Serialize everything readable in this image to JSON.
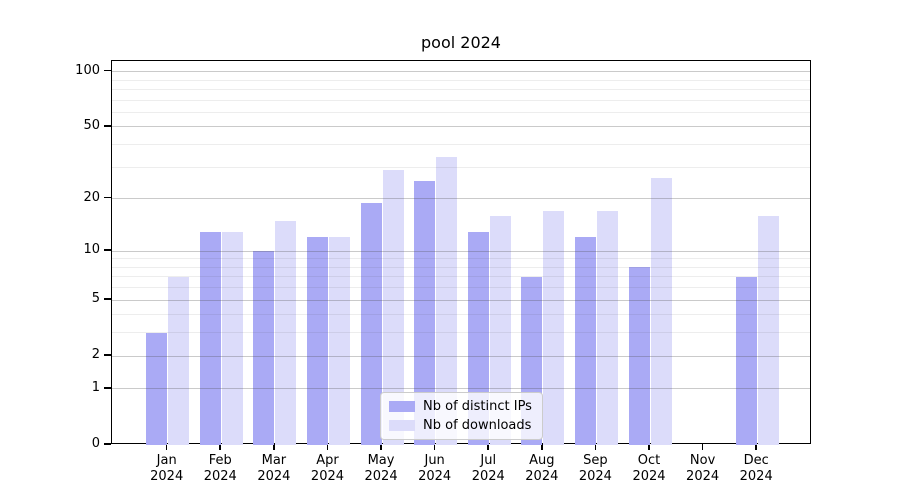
{
  "chart_data": {
    "type": "bar",
    "title": "pool 2024",
    "categories": [
      "Jan 2024",
      "Feb 2024",
      "Mar 2024",
      "Apr 2024",
      "May 2024",
      "Jun 2024",
      "Jul 2024",
      "Aug 2024",
      "Sep 2024",
      "Oct 2024",
      "Nov 2024",
      "Dec 2024"
    ],
    "series": [
      {
        "name": "Nb of distinct IPs",
        "color": "#aaaaf5",
        "values": [
          3,
          13,
          10,
          12,
          19,
          25,
          13,
          7,
          12,
          8,
          0,
          7
        ]
      },
      {
        "name": "Nb of downloads",
        "color": "#dcdcfa",
        "values": [
          7,
          13,
          15,
          12,
          29,
          34,
          16,
          17,
          17,
          26,
          0,
          16
        ]
      }
    ],
    "xlabel": "",
    "ylabel": "",
    "yscale": "log1p",
    "ylim": [
      0,
      115
    ],
    "y_major_ticks": [
      0,
      1,
      2,
      5,
      10,
      20,
      50,
      100
    ],
    "y_minor_gridlines": [
      3,
      4,
      6,
      7,
      8,
      9,
      30,
      40,
      60,
      70,
      80,
      90
    ],
    "grid": "on",
    "legend_position": "lower center"
  },
  "colors": {
    "background": "#ffffff",
    "bar_distinct_ips": "#aaaaf5",
    "bar_downloads": "#dcdcfa",
    "axis": "#000000",
    "grid_major": "#c8c8c8",
    "grid_minor": "#ececec"
  }
}
